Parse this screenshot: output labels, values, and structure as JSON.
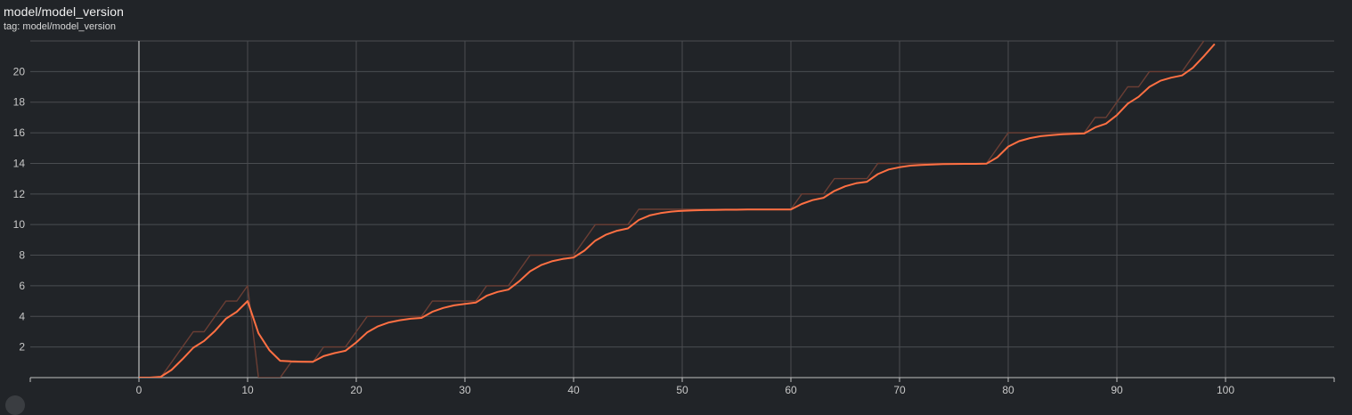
{
  "card": {
    "title": "model/model_version",
    "tag": "tag: model/model_version"
  },
  "colors": {
    "background": "#212428",
    "grid": "#4a4d51",
    "axis": "#c0c0c0",
    "smoothed": "#ff7043",
    "raw": "#6b3e34"
  },
  "chart_data": {
    "type": "line",
    "title": "model/model_version",
    "xlim": [
      -10,
      110
    ],
    "ylim": [
      0,
      22
    ],
    "x_ticks": [
      0,
      10,
      20,
      30,
      40,
      50,
      60,
      70,
      80,
      90,
      100
    ],
    "y_ticks": [
      2,
      4,
      6,
      8,
      10,
      12,
      14,
      16,
      18,
      20
    ],
    "grid": true,
    "series": [
      {
        "role": "raw",
        "color": "#6b3e34",
        "x": [
          0,
          1,
          2,
          3,
          4,
          5,
          6,
          7,
          8,
          9,
          10,
          11,
          12,
          13,
          14,
          15,
          16,
          17,
          18,
          19,
          20,
          21,
          22,
          23,
          24,
          25,
          26,
          27,
          28,
          29,
          30,
          31,
          32,
          33,
          34,
          35,
          36,
          37,
          38,
          39,
          40,
          41,
          42,
          43,
          44,
          45,
          46,
          47,
          48,
          49,
          50,
          51,
          52,
          53,
          54,
          55,
          56,
          57,
          58,
          59,
          60,
          61,
          62,
          63,
          64,
          65,
          66,
          67,
          68,
          69,
          70,
          71,
          72,
          73,
          74,
          75,
          76,
          77,
          78,
          79,
          80,
          81,
          82,
          83,
          84,
          85,
          86,
          87,
          88,
          89,
          90,
          91,
          92,
          93,
          94,
          95,
          96,
          97,
          98,
          99,
          100
        ],
        "values": [
          0,
          0,
          0,
          1,
          2,
          3,
          3,
          4,
          5,
          5,
          6,
          0,
          0,
          0,
          1,
          1,
          1,
          2,
          2,
          2,
          3,
          4,
          4,
          4,
          4,
          4,
          4,
          5,
          5,
          5,
          5,
          5,
          6,
          6,
          6,
          7,
          8,
          8,
          8,
          8,
          8,
          9,
          10,
          10,
          10,
          10,
          11,
          11,
          11,
          11,
          11,
          11,
          11,
          11,
          11,
          11,
          11,
          11,
          11,
          11,
          11,
          12,
          12,
          12,
          13,
          13,
          13,
          13,
          14,
          14,
          14,
          14,
          14,
          14,
          14,
          14,
          14,
          14,
          14,
          15,
          16,
          16,
          16,
          16,
          16,
          16,
          16,
          16,
          17,
          17,
          18,
          19,
          19,
          20,
          20,
          20,
          20,
          21,
          22,
          23,
          24
        ]
      },
      {
        "role": "smoothed",
        "color": "#ff7043",
        "x": [
          0,
          1,
          2,
          3,
          4,
          5,
          6,
          7,
          8,
          9,
          10,
          11,
          12,
          13,
          14,
          15,
          16,
          17,
          18,
          19,
          20,
          21,
          22,
          23,
          24,
          25,
          26,
          27,
          28,
          29,
          30,
          31,
          32,
          33,
          34,
          35,
          36,
          37,
          38,
          39,
          40,
          41,
          42,
          43,
          44,
          45,
          46,
          47,
          48,
          49,
          50,
          51,
          52,
          53,
          54,
          55,
          56,
          57,
          58,
          59,
          60,
          61,
          62,
          63,
          64,
          65,
          66,
          67,
          68,
          69,
          70,
          71,
          72,
          73,
          74,
          75,
          76,
          77,
          78,
          79,
          80,
          81,
          82,
          83,
          84,
          85,
          86,
          87,
          88,
          89,
          90,
          91,
          92,
          93,
          94,
          95,
          96,
          97,
          98,
          99
        ],
        "values": [
          0,
          0,
          0.05,
          0.5,
          1.2,
          1.95,
          2.4,
          3.05,
          3.85,
          4.3,
          5.0,
          2.9,
          1.8,
          1.1,
          1.06,
          1.04,
          1.03,
          1.4,
          1.6,
          1.75,
          2.3,
          2.95,
          3.35,
          3.6,
          3.75,
          3.85,
          3.9,
          4.3,
          4.55,
          4.72,
          4.82,
          4.9,
          5.35,
          5.6,
          5.75,
          6.3,
          6.95,
          7.35,
          7.6,
          7.75,
          7.85,
          8.3,
          8.95,
          9.35,
          9.6,
          9.75,
          10.3,
          10.6,
          10.75,
          10.85,
          10.9,
          10.93,
          10.95,
          10.96,
          10.97,
          10.97,
          10.98,
          10.98,
          10.98,
          10.99,
          10.99,
          11.35,
          11.6,
          11.75,
          12.2,
          12.5,
          12.7,
          12.8,
          13.3,
          13.6,
          13.75,
          13.85,
          13.9,
          13.93,
          13.95,
          13.96,
          13.97,
          13.97,
          13.98,
          14.4,
          15.1,
          15.45,
          15.65,
          15.78,
          15.85,
          15.9,
          15.93,
          15.95,
          16.35,
          16.6,
          17.15,
          17.9,
          18.35,
          19.0,
          19.4,
          19.6,
          19.75,
          20.25,
          21.0,
          21.8
        ]
      }
    ]
  }
}
